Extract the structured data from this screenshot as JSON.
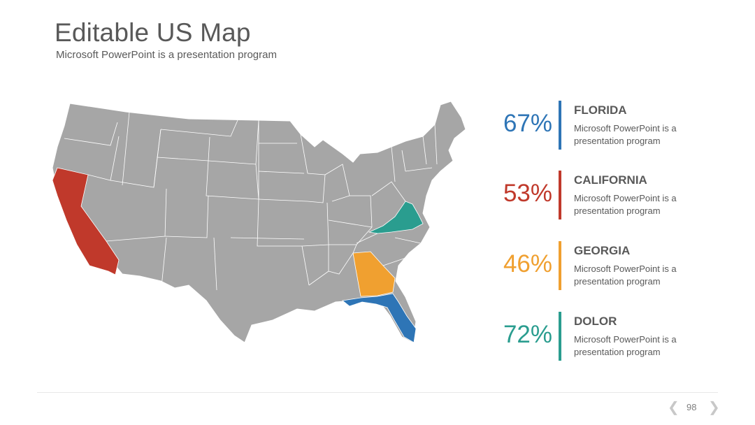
{
  "slide": {
    "title": "Editable US Map",
    "subtitle": "Microsoft PowerPoint is a presentation program",
    "page_number": "98"
  },
  "colors": {
    "base_state": "#a6a6a6",
    "border": "#ffffff",
    "california": "#c0392b",
    "virginia": "#2a9d8f",
    "georgia": "#f0a030",
    "florida": "#2e75b6"
  },
  "map": {
    "highlighted_states": [
      "California",
      "Virginia",
      "Georgia",
      "Florida"
    ]
  },
  "stats": [
    {
      "percent": "67%",
      "name": "FLORIDA",
      "description": "Microsoft PowerPoint is a presentation program",
      "color": "#2e75b6"
    },
    {
      "percent": "53%",
      "name": "CALIFORNIA",
      "description": "Microsoft PowerPoint is a presentation program",
      "color": "#c0392b"
    },
    {
      "percent": "46%",
      "name": "GEORGIA",
      "description": "Microsoft PowerPoint is a presentation program",
      "color": "#f0a030"
    },
    {
      "percent": "72%",
      "name": "DOLOR",
      "description": "Microsoft PowerPoint is a presentation program",
      "color": "#2a9d8f"
    }
  ],
  "pager": {
    "prev_icon": "chevron-left-icon",
    "next_icon": "chevron-right-icon"
  }
}
